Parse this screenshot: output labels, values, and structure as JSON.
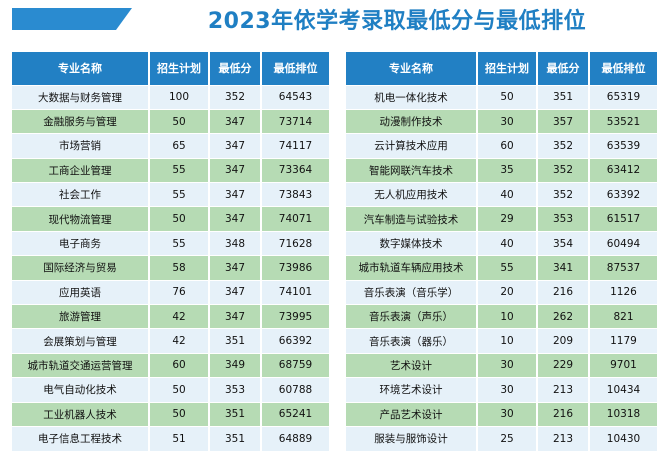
{
  "page": {
    "title": "2023年依学考录取最低分与最低排位",
    "colors": {
      "header": "#2280c4",
      "row_light": "#e6f1f9",
      "row_green": "#b6dbb4",
      "title": "#1f7fc3"
    }
  },
  "columns": [
    "专业名称",
    "招生计划",
    "最低分",
    "最低排位"
  ],
  "left_rows": [
    [
      "大数据与财务管理",
      "100",
      "352",
      "64543"
    ],
    [
      "金融服务与管理",
      "50",
      "347",
      "73714"
    ],
    [
      "市场营销",
      "65",
      "347",
      "74117"
    ],
    [
      "工商企业管理",
      "55",
      "347",
      "73364"
    ],
    [
      "社会工作",
      "55",
      "347",
      "73843"
    ],
    [
      "现代物流管理",
      "50",
      "347",
      "74071"
    ],
    [
      "电子商务",
      "55",
      "348",
      "71628"
    ],
    [
      "国际经济与贸易",
      "58",
      "347",
      "73986"
    ],
    [
      "应用英语",
      "76",
      "347",
      "74101"
    ],
    [
      "旅游管理",
      "42",
      "347",
      "73995"
    ],
    [
      "会展策划与管理",
      "42",
      "351",
      "66392"
    ],
    [
      "城市轨道交通运营管理",
      "60",
      "349",
      "68759"
    ],
    [
      "电气自动化技术",
      "50",
      "353",
      "60788"
    ],
    [
      "工业机器人技术",
      "50",
      "351",
      "65241"
    ],
    [
      "电子信息工程技术",
      "51",
      "351",
      "64889"
    ]
  ],
  "right_rows": [
    [
      "机电一体化技术",
      "50",
      "351",
      "65319"
    ],
    [
      "动漫制作技术",
      "30",
      "357",
      "53521"
    ],
    [
      "云计算技术应用",
      "60",
      "352",
      "63539"
    ],
    [
      "智能网联汽车技术",
      "35",
      "352",
      "63412"
    ],
    [
      "无人机应用技术",
      "40",
      "352",
      "63392"
    ],
    [
      "汽车制造与试验技术",
      "29",
      "353",
      "61517"
    ],
    [
      "数字媒体技术",
      "40",
      "354",
      "60494"
    ],
    [
      "城市轨道车辆应用技术",
      "55",
      "341",
      "87537"
    ],
    [
      "音乐表演（音乐学）",
      "20",
      "216",
      "1126"
    ],
    [
      "音乐表演（声乐）",
      "10",
      "262",
      "821"
    ],
    [
      "音乐表演（器乐）",
      "10",
      "209",
      "1179"
    ],
    [
      "艺术设计",
      "30",
      "229",
      "9701"
    ],
    [
      "环境艺术设计",
      "30",
      "213",
      "10434"
    ],
    [
      "产品艺术设计",
      "30",
      "216",
      "10318"
    ],
    [
      "服装与服饰设计",
      "25",
      "213",
      "10430"
    ]
  ]
}
